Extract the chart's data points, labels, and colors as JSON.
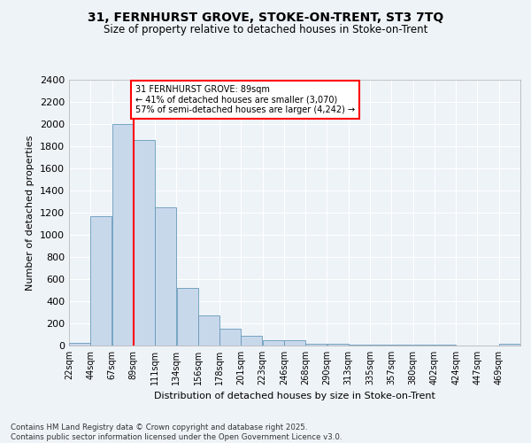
{
  "title_line1": "31, FERNHURST GROVE, STOKE-ON-TRENT, ST3 7TQ",
  "title_line2": "Size of property relative to detached houses in Stoke-on-Trent",
  "xlabel": "Distribution of detached houses by size in Stoke-on-Trent",
  "ylabel": "Number of detached properties",
  "bin_labels": [
    "22sqm",
    "44sqm",
    "67sqm",
    "89sqm",
    "111sqm",
    "134sqm",
    "156sqm",
    "178sqm",
    "201sqm",
    "223sqm",
    "246sqm",
    "268sqm",
    "290sqm",
    "313sqm",
    "335sqm",
    "357sqm",
    "380sqm",
    "402sqm",
    "424sqm",
    "447sqm",
    "469sqm"
  ],
  "bar_values": [
    25,
    1170,
    2000,
    1860,
    1245,
    520,
    275,
    150,
    90,
    45,
    45,
    20,
    20,
    10,
    5,
    5,
    5,
    5,
    2,
    2,
    15
  ],
  "bar_color": "#c8d8eb",
  "bar_edge_color": "#6699bb",
  "annotation_text": "31 FERNHURST GROVE: 89sqm\n← 41% of detached houses are smaller (3,070)\n57% of semi-detached houses are larger (4,242) →",
  "annotation_box_color": "white",
  "annotation_box_edge": "red",
  "ylim": [
    0,
    2400
  ],
  "yticks": [
    0,
    200,
    400,
    600,
    800,
    1000,
    1200,
    1400,
    1600,
    1800,
    2000,
    2200,
    2400
  ],
  "footer_line1": "Contains HM Land Registry data © Crown copyright and database right 2025.",
  "footer_line2": "Contains public sector information licensed under the Open Government Licence v3.0.",
  "bg_color": "#eef3f8",
  "grid_color": "white",
  "bin_width": 22,
  "red_line_bin_index": 3
}
